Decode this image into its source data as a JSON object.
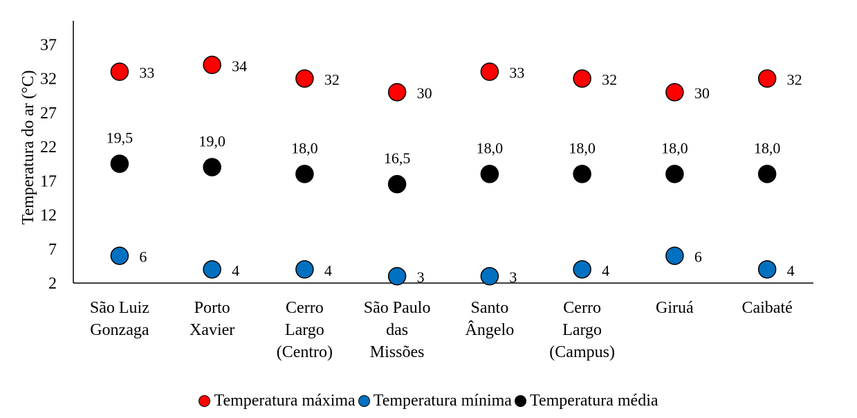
{
  "chart_data": {
    "type": "scatter",
    "title": "",
    "xlabel": "",
    "ylabel": "Temperatura do ar (°C)",
    "ylim": [
      2,
      40
    ],
    "yticks": [
      2,
      7,
      12,
      17,
      22,
      27,
      32,
      37
    ],
    "grid": false,
    "legend_position": "bottom",
    "categories": [
      [
        "São Luiz",
        "Gonzaga"
      ],
      [
        "Porto",
        "Xavier"
      ],
      [
        "Cerro",
        "Largo",
        "(Centro)"
      ],
      [
        "São Paulo",
        "das",
        "Missões"
      ],
      [
        "Santo",
        "Ângelo"
      ],
      [
        "Cerro",
        "Largo",
        "(Campus)"
      ],
      [
        "Giruá"
      ],
      [
        "Caibaté"
      ]
    ],
    "series": [
      {
        "name": "Temperatura máxima",
        "color": "#ff0000",
        "values": [
          33,
          34,
          32,
          30,
          33,
          32,
          30,
          32
        ],
        "labels": [
          "33",
          "34",
          "32",
          "30",
          "33",
          "32",
          "30",
          "32"
        ],
        "label_position": "right"
      },
      {
        "name": "Temperatura mínima",
        "color": "#0070c0",
        "values": [
          6,
          4,
          4,
          3,
          3,
          4,
          6,
          4
        ],
        "labels": [
          "6",
          "4",
          "4",
          "3",
          "3",
          "4",
          "6",
          "4"
        ],
        "label_position": "right"
      },
      {
        "name": "Temperatura média",
        "color": "#000000",
        "values": [
          19.5,
          19.0,
          18.0,
          16.5,
          18.0,
          18.0,
          18.0,
          18.0
        ],
        "labels": [
          "19,5",
          "19,0",
          "18,0",
          "16,5",
          "18,0",
          "18,0",
          "18,0",
          "18,0"
        ],
        "label_position": "above"
      }
    ]
  }
}
